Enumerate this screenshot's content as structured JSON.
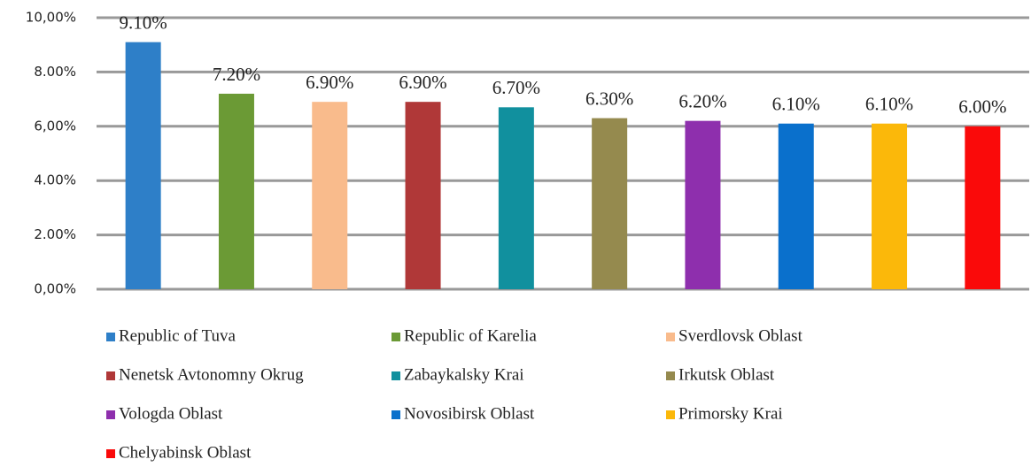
{
  "chart_data": {
    "type": "bar",
    "categories": [
      "Republic of Tuva",
      "Republic of Karelia",
      "Sverdlovsk Oblast",
      "Nenetsk Avtonomny Okrug",
      "Zabaykalsky Krai",
      "Irkutsk Oblast",
      "Vologda Oblast",
      "Novosibirsk Oblast",
      "Primorsky Krai",
      "Chelyabinsk Oblast"
    ],
    "values": [
      9.1,
      7.2,
      6.9,
      6.9,
      6.7,
      6.3,
      6.2,
      6.1,
      6.1,
      6.0
    ],
    "value_labels": [
      "9.10%",
      "7.20%",
      "6.90%",
      "6.90%",
      "6.70%",
      "6.30%",
      "6.20%",
      "6.10%",
      "6.10%",
      "6.00%"
    ],
    "colors": [
      "#2e7fc8",
      "#6b9a35",
      "#f9bb8c",
      "#b03838",
      "#11909e",
      "#958a4e",
      "#8e2fad",
      "#0a70cc",
      "#fbb80a",
      "#fa0a0a"
    ],
    "ylim": [
      0,
      10
    ],
    "yticks": [
      {
        "value": 0,
        "label": "0,00%"
      },
      {
        "value": 2,
        "label": "2.00%"
      },
      {
        "value": 4,
        "label": "4.00%"
      },
      {
        "value": 6,
        "label": "6,00%"
      },
      {
        "value": 8,
        "label": "8.00%"
      },
      {
        "value": 10,
        "label": "10,00%"
      }
    ],
    "grid": true
  }
}
